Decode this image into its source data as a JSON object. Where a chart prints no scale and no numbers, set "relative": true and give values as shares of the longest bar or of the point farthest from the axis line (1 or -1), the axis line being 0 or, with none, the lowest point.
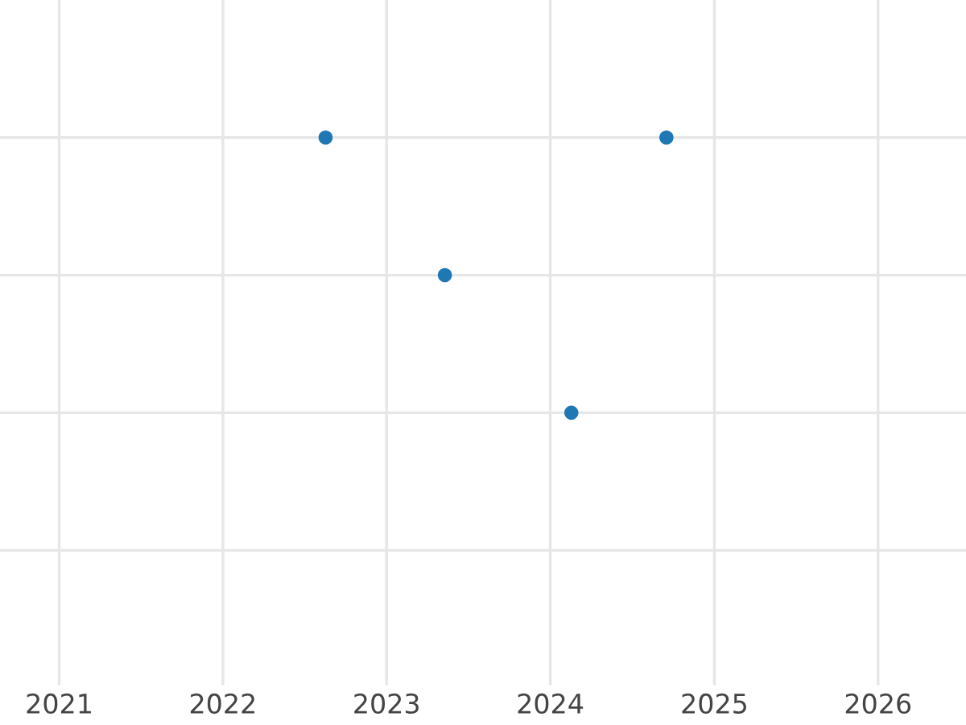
{
  "chart_data": {
    "type": "scatter",
    "relative": true,
    "x": [
      "2022-08-18",
      "2023-05-11",
      "2024-02-17",
      "2024-09-16"
    ],
    "values": [
      1,
      0.5,
      0,
      1
    ],
    "color": "#1f77b4",
    "xlim": [
      "2020-08-22",
      "2026-07-16"
    ],
    "xticks": [
      {
        "value": "2021",
        "label": "2021"
      },
      {
        "value": "2022",
        "label": "2022"
      },
      {
        "value": "2023",
        "label": "2023"
      },
      {
        "value": "2024",
        "label": "2024"
      },
      {
        "value": "2025",
        "label": "2025"
      },
      {
        "value": "2026",
        "label": "2026"
      }
    ],
    "grid": true,
    "marker": "circle"
  }
}
